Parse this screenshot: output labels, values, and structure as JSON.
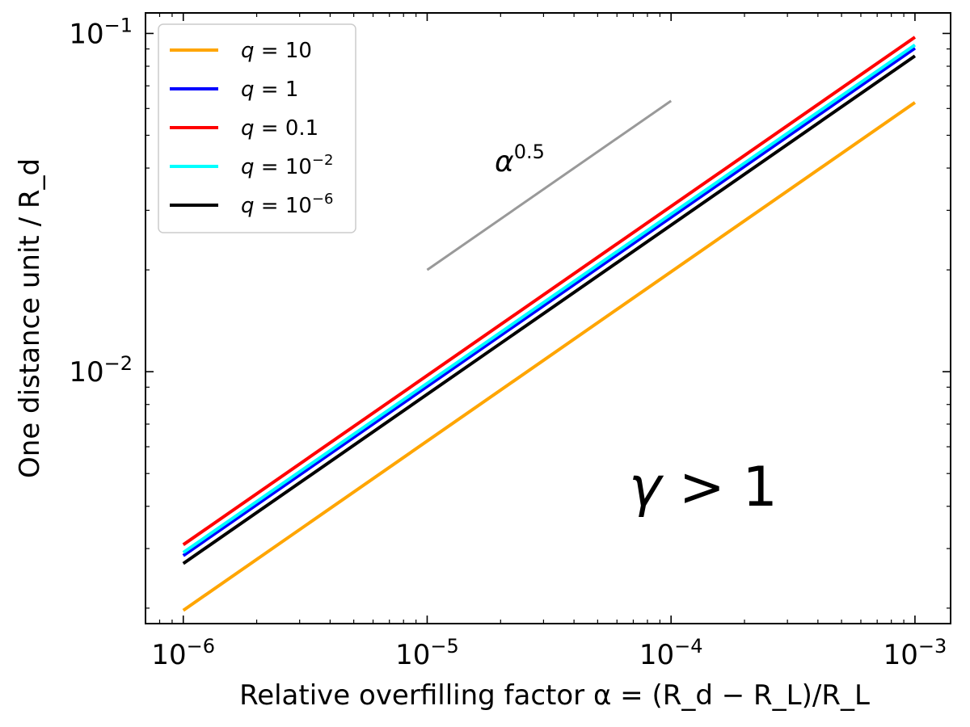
{
  "chart_data": {
    "type": "line",
    "xscale": "log",
    "yscale": "log",
    "xlabel": "Relative overfilling factor α = (R_d − R_L)/R_L",
    "ylabel": "One distance unit / R_d",
    "xlim": [
      7e-07,
      0.0014
    ],
    "ylim": [
      0.0018,
      0.115
    ],
    "x_ticks": [
      {
        "value": 1e-06,
        "base": "10",
        "exp": "−6"
      },
      {
        "value": 1e-05,
        "base": "10",
        "exp": "−5"
      },
      {
        "value": 0.0001,
        "base": "10",
        "exp": "−4"
      },
      {
        "value": 0.001,
        "base": "10",
        "exp": "−3"
      }
    ],
    "y_ticks": [
      {
        "value": 0.01,
        "base": "10",
        "exp": "−2"
      },
      {
        "value": 0.1,
        "base": "10",
        "exp": "−1"
      }
    ],
    "series": [
      {
        "name": "q = 10",
        "q_base": "q = ",
        "q_value": "10",
        "q_exp": "",
        "color": "#ffa500",
        "x": [
          1e-06,
          0.001
        ],
        "y": [
          0.00197,
          0.0625
        ]
      },
      {
        "name": "q = 1",
        "q_base": "q = ",
        "q_value": "1",
        "q_exp": "",
        "color": "#0000ff",
        "x": [
          1e-06,
          0.001
        ],
        "y": [
          0.00286,
          0.0905
        ]
      },
      {
        "name": "q = 0.1",
        "q_base": "q = ",
        "q_value": "0.1",
        "q_exp": "",
        "color": "#ff0000",
        "x": [
          1e-06,
          0.001
        ],
        "y": [
          0.00308,
          0.0975
        ]
      },
      {
        "name": "q = 10^-2",
        "q_base": "q = ",
        "q_value": "10",
        "q_exp": "−2",
        "color": "#00ffff",
        "x": [
          1e-06,
          0.001
        ],
        "y": [
          0.00292,
          0.0925
        ]
      },
      {
        "name": "q = 10^-6",
        "q_base": "q = ",
        "q_value": "10",
        "q_exp": "−6",
        "color": "#000000",
        "x": [
          1e-06,
          0.001
        ],
        "y": [
          0.00271,
          0.0858
        ]
      }
    ],
    "reference_line": {
      "label_base": "α",
      "label_exp": "0.5",
      "color": "#999999",
      "x": [
        1e-05,
        0.0001
      ],
      "y": [
        0.02,
        0.0632
      ]
    },
    "annotation": {
      "text_var": "γ",
      "text_rest": " > 1"
    },
    "legend_position": "top-left"
  }
}
